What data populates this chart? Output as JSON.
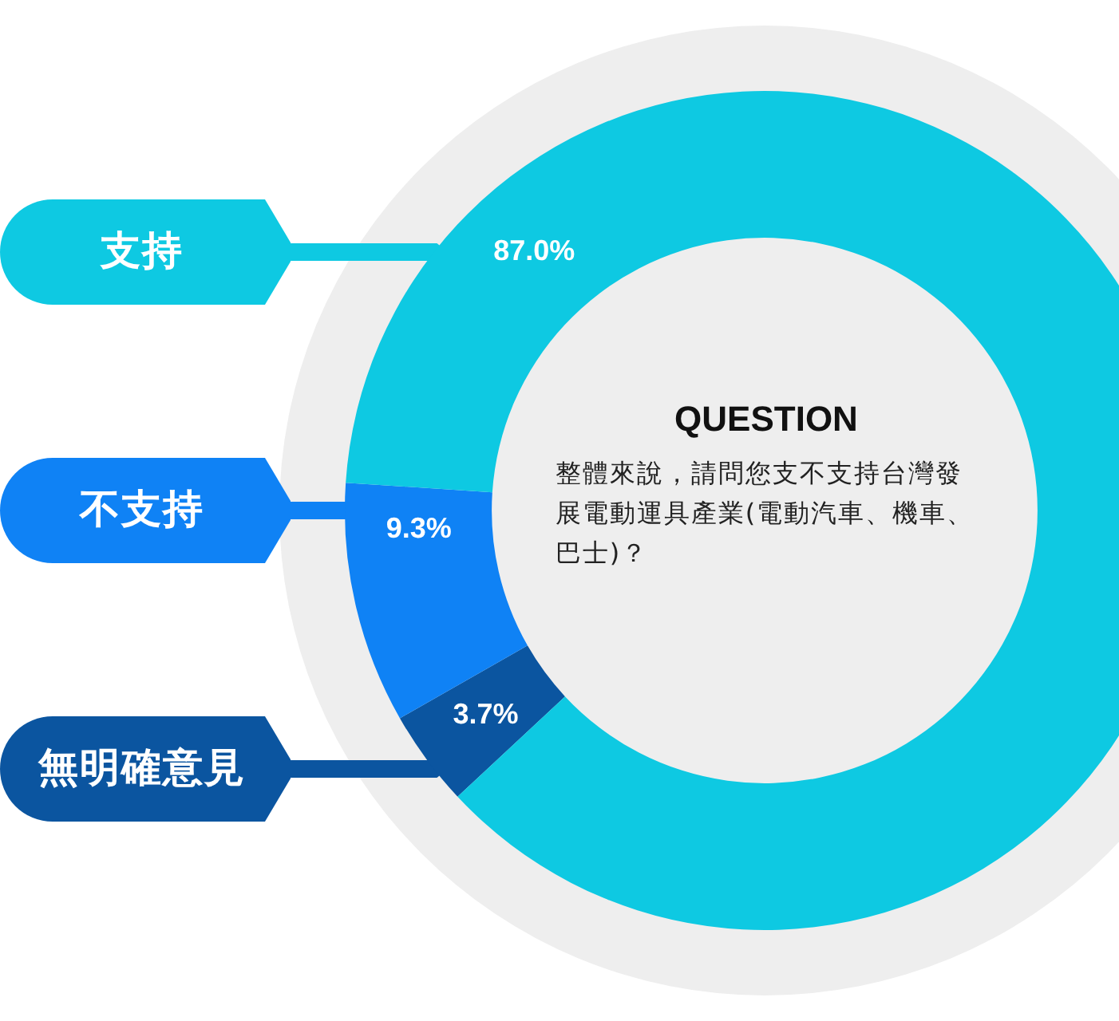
{
  "chart_data": {
    "type": "donut",
    "title": "QUESTION",
    "subtitle": "整體來說，請問您支不支持台灣發展電動運具產業(電動汽車、機車、巴士)？",
    "categories": [
      "支持",
      "不支持",
      "無明確意見"
    ],
    "values": [
      87.0,
      9.3,
      3.7
    ],
    "colors": [
      "#0ec9e2",
      "#0f82f5",
      "#0b55a0"
    ],
    "value_labels": [
      "87.0%",
      "9.3%",
      "3.7%"
    ],
    "legend": "left"
  }
}
